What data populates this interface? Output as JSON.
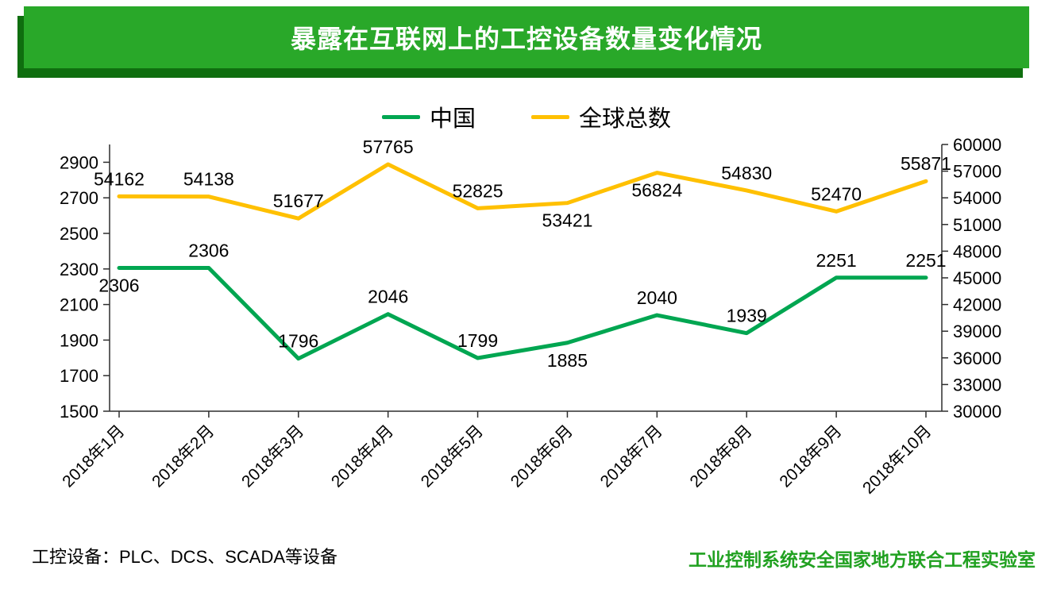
{
  "colors": {
    "banner_green": "#29A829",
    "banner_shadow": "#0F6E0F",
    "lab_green": "#21A121",
    "china_green": "#00A651",
    "global_yellow": "#FFC000",
    "text": "#000000"
  },
  "footer": {
    "note": "工控设备：PLC、DCS、SCADA等设备",
    "lab": "工业控制系统安全国家地方联合工程实验室"
  },
  "chart_data": {
    "type": "line",
    "title": "暴露在互联网上的工控设备数量变化情况",
    "xlabel": "",
    "ylabel": "",
    "grid": false,
    "legend_position": "top",
    "categories": [
      "2018年1月",
      "2018年2月",
      "2018年3月",
      "2018年4月",
      "2018年5月",
      "2018年6月",
      "2018年7月",
      "2018年8月",
      "2018年9月",
      "2018年10月"
    ],
    "series": [
      {
        "name": "中国",
        "axis": "left",
        "color": "#00A651",
        "values": [
          2306,
          2306,
          1796,
          2046,
          1799,
          1885,
          2040,
          1939,
          2251,
          2251
        ]
      },
      {
        "name": "全球总数",
        "axis": "right",
        "color": "#FFC000",
        "values": [
          54162,
          54138,
          51677,
          57765,
          52825,
          53421,
          56824,
          54830,
          52470,
          55871
        ]
      }
    ],
    "left_axis": {
      "min": 1500,
      "max": 3000,
      "ticks": [
        1500,
        1700,
        1900,
        2100,
        2300,
        2500,
        2700,
        2900
      ]
    },
    "right_axis": {
      "min": 30000,
      "max": 60000,
      "ticks": [
        30000,
        33000,
        36000,
        39000,
        42000,
        45000,
        48000,
        51000,
        54000,
        57000,
        60000
      ]
    }
  }
}
